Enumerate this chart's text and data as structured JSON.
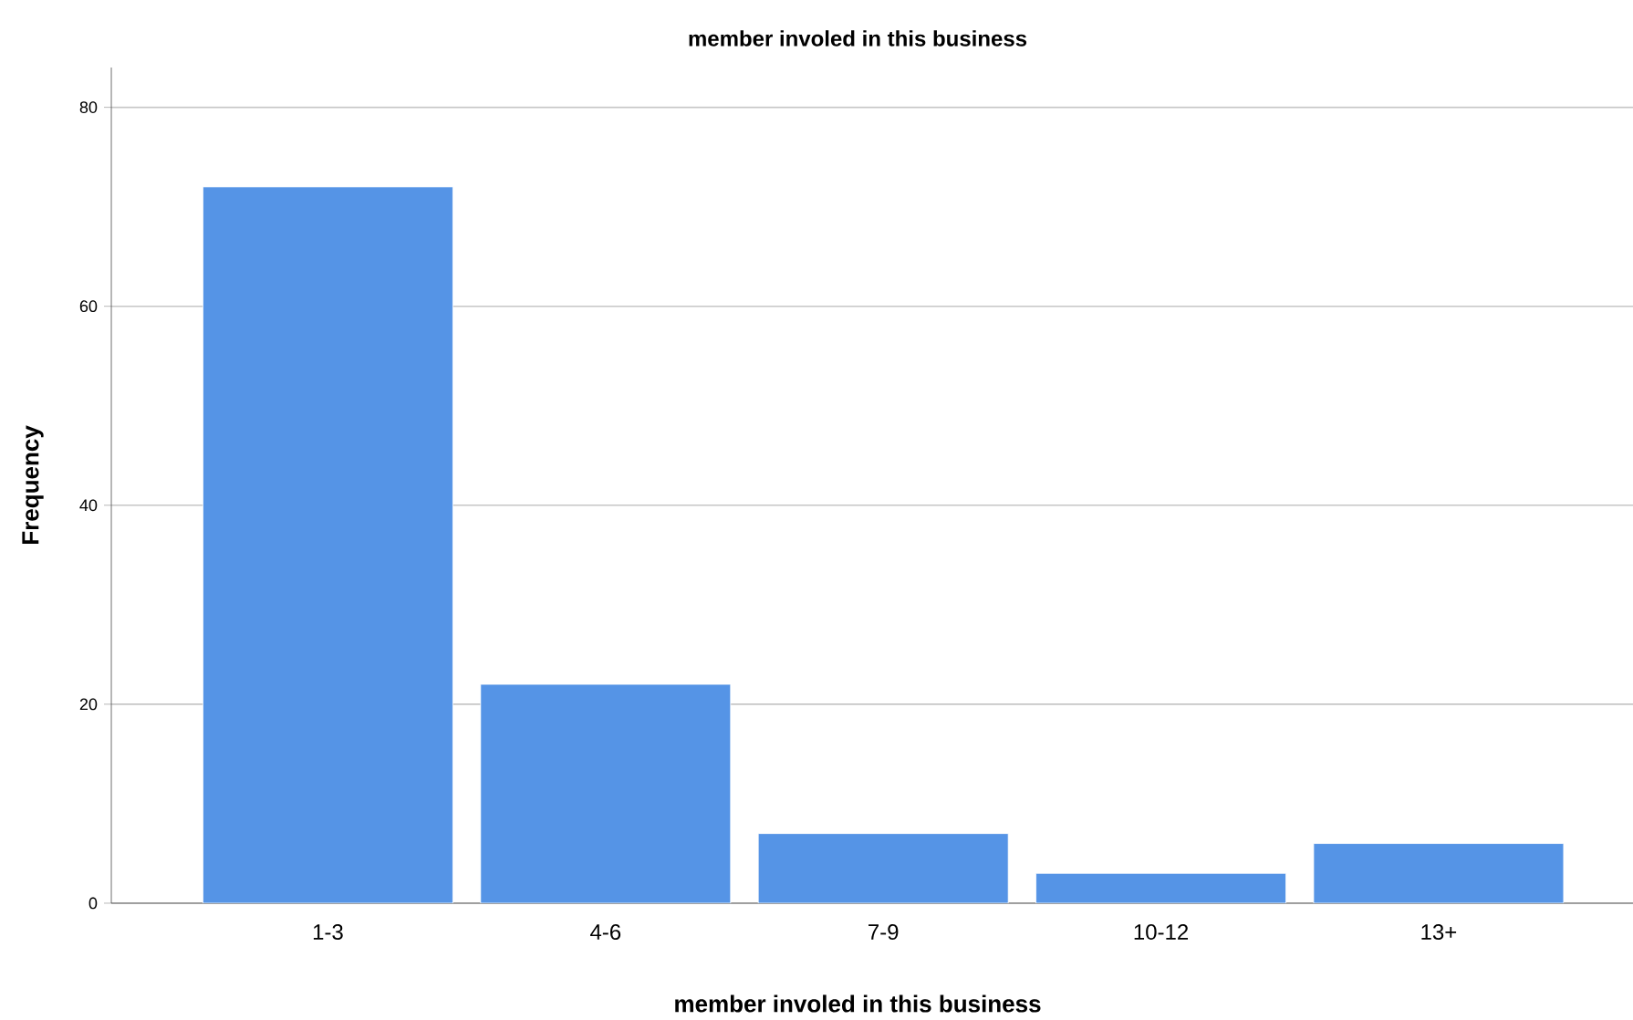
{
  "chart_data": {
    "type": "bar",
    "title": "member involed in this business",
    "xlabel": "member involed in this business",
    "ylabel": "Frequency",
    "categories": [
      "1-3",
      "4-6",
      "7-9",
      "10-12",
      "13+"
    ],
    "values": [
      72,
      22,
      7,
      3,
      6
    ],
    "color": "#5594e6",
    "ylim": [
      0,
      84
    ],
    "yticks": [
      0,
      20,
      40,
      60,
      80
    ],
    "grid": "y"
  }
}
